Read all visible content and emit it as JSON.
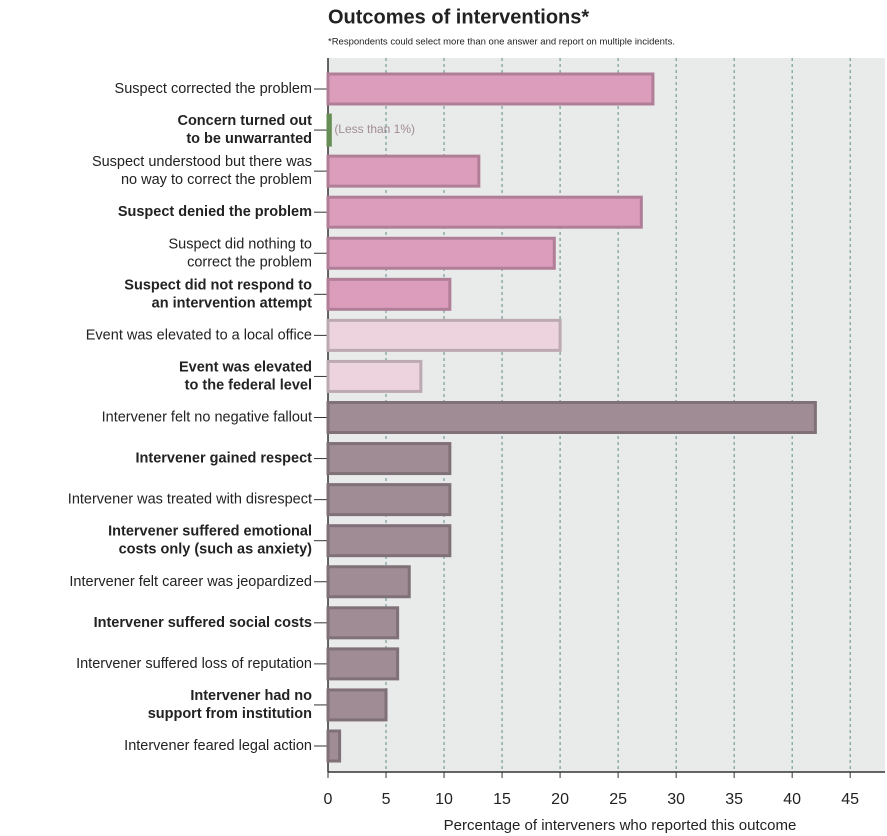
{
  "chart_data": {
    "type": "bar",
    "orientation": "horizontal",
    "title": "Outcomes of interventions*",
    "subtitle": "*Respondents could select more than one answer and report on multiple incidents.",
    "x_label": "Percentage of interveners who reported this outcome",
    "categories": [
      "Suspect corrected the problem",
      "Concern turned out\nto be unwarranted",
      "Suspect understood but there was\nno way to correct the problem",
      "Suspect denied the problem",
      "Suspect did nothing to\ncorrect the problem",
      "Suspect did not respond to\nan intervention attempt",
      "Event was elevated to a local office",
      "Event was elevated\nto the federal level",
      "Intervener felt no negative fallout",
      "Intervener gained respect",
      "Intervener was treated with disrespect",
      "Intervener suffered emotional\ncosts only (such as anxiety)",
      "Intervener felt career was jeopardized",
      "Intervener suffered social costs",
      "Intervener suffered loss of reputation",
      "Intervener had no\nsupport from institution",
      "Intervener feared legal action"
    ],
    "values": [
      28,
      0.2,
      13,
      27,
      19.5,
      10.5,
      20,
      8,
      42,
      10.5,
      10.5,
      10.5,
      7,
      6,
      6,
      5,
      1
    ],
    "value_labels": [
      null,
      "(Less than 1%)",
      null,
      null,
      null,
      null,
      null,
      null,
      null,
      null,
      null,
      null,
      null,
      null,
      null,
      null,
      null
    ],
    "colors": [
      "#dc9dbc",
      "#7fb069",
      "#dc9dbc",
      "#dc9dbc",
      "#dc9dbc",
      "#dc9dbc",
      "#ecd3de",
      "#ecd3de",
      "#a08c95",
      "#a08c95",
      "#a08c95",
      "#a08c95",
      "#a08c95",
      "#a08c95",
      "#a08c95",
      "#a08c95",
      "#a08c95"
    ],
    "xlim": [
      0,
      48
    ],
    "xticks": [
      0,
      5,
      10,
      15,
      20,
      25,
      30,
      35,
      40,
      45
    ],
    "grid": true
  }
}
